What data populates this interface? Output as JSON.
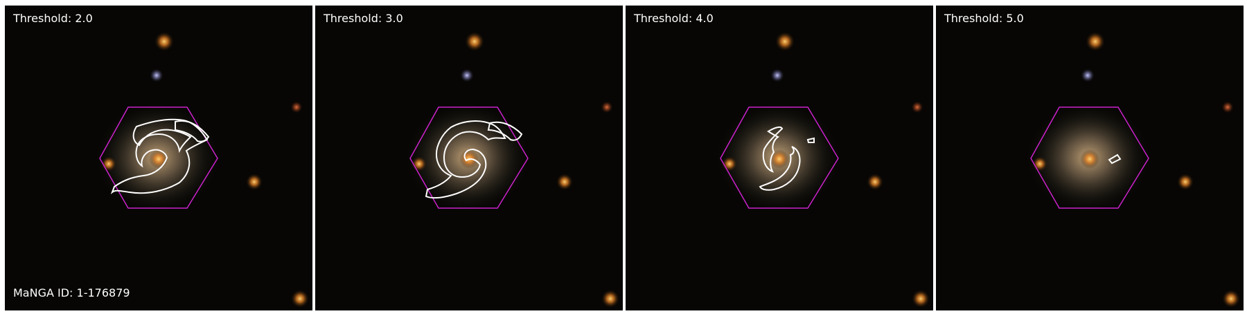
{
  "figure": {
    "manga_id_label": "MaNGA ID: 1-176879",
    "panels": [
      {
        "label": "Threshold: 2.0",
        "threshold": 2.0
      },
      {
        "label": "Threshold: 3.0",
        "threshold": 3.0
      },
      {
        "label": "Threshold: 4.0",
        "threshold": 4.0
      },
      {
        "label": "Threshold: 5.0",
        "threshold": 5.0
      }
    ]
  },
  "colors": {
    "background": "#070604",
    "hexagon_outline": "#cc22cc",
    "contour": "#ffffff",
    "label_text": "#ffffff"
  }
}
